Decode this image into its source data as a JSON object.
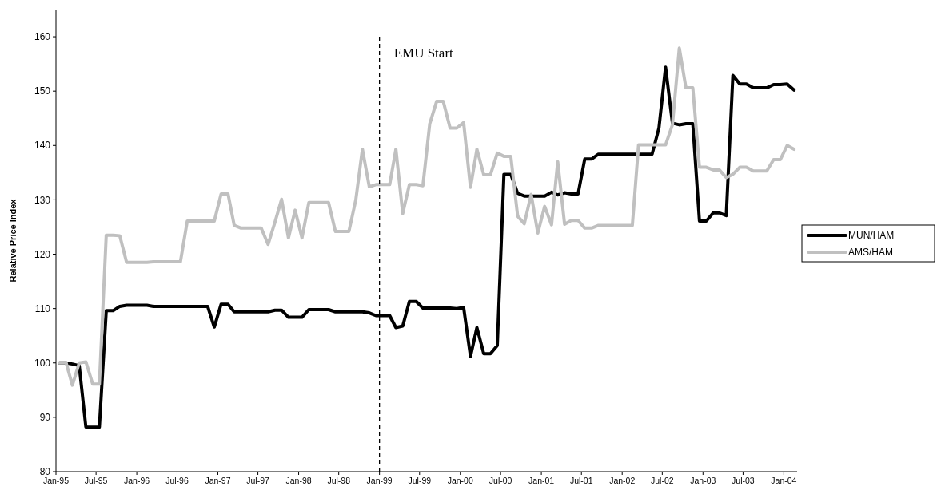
{
  "chart_data": {
    "type": "line",
    "ylabel": "Relative Price Index",
    "x": [
      "1995-01-16",
      "1995-02-16",
      "1995-03-16",
      "1995-04-16",
      "1995-05-16",
      "1995-06-16",
      "1995-07-16",
      "1995-08-16",
      "1995-09-16",
      "1995-10-16",
      "1995-11-16",
      "1995-12-16",
      "1996-01-16",
      "1996-02-16",
      "1996-03-16",
      "1996-04-16",
      "1996-05-16",
      "1996-06-16",
      "1996-07-16",
      "1996-08-16",
      "1996-09-16",
      "1996-10-16",
      "1996-11-16",
      "1996-12-16",
      "1997-01-16",
      "1997-02-16",
      "1997-03-16",
      "1997-04-16",
      "1997-05-16",
      "1997-06-16",
      "1997-07-16",
      "1997-08-16",
      "1997-09-16",
      "1997-10-16",
      "1997-11-16",
      "1997-12-16",
      "1998-01-16",
      "1998-02-16",
      "1998-03-16",
      "1998-04-16",
      "1998-05-16",
      "1998-06-16",
      "1998-07-16",
      "1998-08-16",
      "1998-09-16",
      "1998-10-16",
      "1998-11-16",
      "1998-12-16",
      "1999-01-16",
      "1999-02-16",
      "1999-03-16",
      "1999-04-16",
      "1999-05-16",
      "1999-06-16",
      "1999-07-16",
      "1999-08-16",
      "1999-09-16",
      "1999-10-16",
      "1999-11-16",
      "1999-12-16",
      "2000-01-16",
      "2000-02-16",
      "2000-03-16",
      "2000-04-16",
      "2000-05-16",
      "2000-06-16",
      "2000-07-16",
      "2000-08-16",
      "2000-09-16",
      "2000-10-16",
      "2000-11-16",
      "2000-12-16",
      "2001-01-16",
      "2001-02-16",
      "2001-03-16",
      "2001-04-16",
      "2001-05-16",
      "2001-06-16",
      "2001-07-16",
      "2001-08-16",
      "2001-09-16",
      "2001-10-16",
      "2001-11-16",
      "2001-12-16",
      "2002-01-16",
      "2002-02-16",
      "2002-03-16",
      "2002-04-16",
      "2002-05-16",
      "2002-06-16",
      "2002-07-16",
      "2002-08-16",
      "2002-09-16",
      "2002-10-16",
      "2002-11-16",
      "2002-12-16",
      "2003-01-16",
      "2003-02-16",
      "2003-03-16",
      "2003-04-16",
      "2003-05-16",
      "2003-06-16",
      "2003-07-16",
      "2003-08-16",
      "2003-09-16",
      "2003-10-16",
      "2003-11-16",
      "2003-12-16",
      "2004-01-16",
      "2004-02-16"
    ],
    "series": [
      {
        "name": "MUN/HAM",
        "color": "#000000",
        "values": [
          100,
          100,
          99.8,
          99.5,
          88.2,
          88.2,
          88.2,
          109.6,
          109.6,
          110.4,
          110.6,
          110.6,
          110.6,
          110.6,
          110.4,
          110.4,
          110.4,
          110.4,
          110.4,
          110.4,
          110.4,
          110.4,
          110.4,
          106.6,
          110.8,
          110.8,
          109.4,
          109.4,
          109.4,
          109.4,
          109.4,
          109.4,
          109.7,
          109.7,
          108.4,
          108.4,
          108.4,
          109.8,
          109.8,
          109.8,
          109.8,
          109.4,
          109.4,
          109.4,
          109.4,
          109.4,
          109.2,
          108.7,
          108.7,
          108.7,
          106.5,
          106.8,
          111.3,
          111.3,
          110.1,
          110.1,
          110.1,
          110.1,
          110.1,
          110,
          110.2,
          101.2,
          106.5,
          101.7,
          101.7,
          103.2,
          134.7,
          134.7,
          131.2,
          130.7,
          130.7,
          130.7,
          130.7,
          131.4,
          130.9,
          131.3,
          131.1,
          131.1,
          137.5,
          137.5,
          138.4,
          138.4,
          138.4,
          138.4,
          138.4,
          138.4,
          138.4,
          138.4,
          138.4,
          143.2,
          154.4,
          144.1,
          143.8,
          144,
          144,
          126.1,
          126.1,
          127.6,
          127.6,
          127.1,
          152.9,
          151.3,
          151.3,
          150.6,
          150.6,
          150.6,
          151.2,
          151.2,
          151.3,
          150.2
        ]
      },
      {
        "name": "AMS/HAM",
        "color": "#c0c0c0",
        "values": [
          100,
          100,
          95.9,
          100,
          100.2,
          96.1,
          96.1,
          123.5,
          123.5,
          123.4,
          118.5,
          118.5,
          118.5,
          118.5,
          118.6,
          118.6,
          118.6,
          118.6,
          118.6,
          126.1,
          126.1,
          126.1,
          126.1,
          126.1,
          131.1,
          131.1,
          125.3,
          124.8,
          124.8,
          124.8,
          124.8,
          121.8,
          125.9,
          130.1,
          123,
          128.1,
          123,
          129.5,
          129.5,
          129.5,
          129.5,
          124.2,
          124.2,
          124.2,
          130,
          139.3,
          132.4,
          132.8,
          132.8,
          132.8,
          139.3,
          127.5,
          132.8,
          132.8,
          132.6,
          144,
          148.1,
          148.1,
          143.2,
          143.2,
          144.2,
          132.3,
          139.3,
          134.6,
          134.6,
          138.6,
          138,
          138,
          127,
          125.6,
          131,
          123.9,
          128.8,
          125.4,
          137,
          125.5,
          126.2,
          126.2,
          124.8,
          124.8,
          125.3,
          125.3,
          125.3,
          125.3,
          125.3,
          125.3,
          140.1,
          140.1,
          140.1,
          140.1,
          140.1,
          143.8,
          157.9,
          150.6,
          150.6,
          136,
          136,
          135.5,
          135.5,
          134.1,
          134.7,
          136,
          136,
          135.3,
          135.3,
          135.3,
          137.4,
          137.4,
          140,
          139.3
        ]
      }
    ],
    "xlim": [
      "1995-01",
      "2004-03"
    ],
    "xticks": [
      {
        "value": "1995-01",
        "label": "Jan-95"
      },
      {
        "value": "1995-07",
        "label": "Jul-95"
      },
      {
        "value": "1996-01",
        "label": "Jan-96"
      },
      {
        "value": "1996-07",
        "label": "Jul-96"
      },
      {
        "value": "1997-01",
        "label": "Jan-97"
      },
      {
        "value": "1997-07",
        "label": "Jul-97"
      },
      {
        "value": "1998-01",
        "label": "Jan-98"
      },
      {
        "value": "1998-07",
        "label": "Jul-98"
      },
      {
        "value": "1999-01",
        "label": "Jan-99"
      },
      {
        "value": "1999-07",
        "label": "Jul-99"
      },
      {
        "value": "2000-01",
        "label": "Jan-00"
      },
      {
        "value": "2000-07",
        "label": "Jul-00"
      },
      {
        "value": "2001-01",
        "label": "Jan-01"
      },
      {
        "value": "2001-07",
        "label": "Jul-01"
      },
      {
        "value": "2002-01",
        "label": "Jan-02"
      },
      {
        "value": "2002-07",
        "label": "Jul-02"
      },
      {
        "value": "2003-01",
        "label": "Jan-03"
      },
      {
        "value": "2003-07",
        "label": "Jul-03"
      },
      {
        "value": "2004-01",
        "label": "Jan-04"
      }
    ],
    "ylim": [
      80,
      165
    ],
    "yticks": [
      80,
      90,
      100,
      110,
      120,
      130,
      140,
      150,
      160
    ],
    "ref_lines": [
      {
        "axis": "x",
        "value": "1999-01",
        "label": "EMU Start",
        "color": "#000000",
        "line_style": "dashed"
      }
    ],
    "legend": "right",
    "marker": "none",
    "line_style": "solid"
  }
}
